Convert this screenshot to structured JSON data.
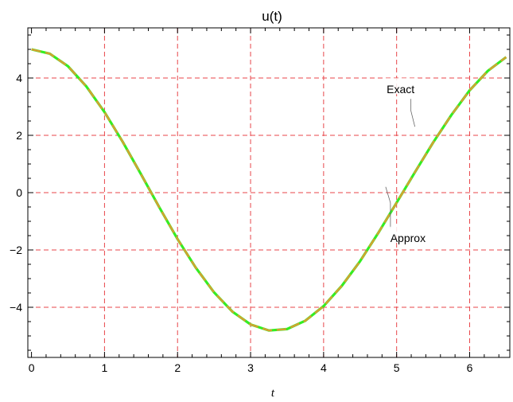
{
  "chart_data": {
    "type": "line",
    "title": "u(t)",
    "xlabel": "t",
    "ylabel": "",
    "xlim": [
      -0.05,
      6.55
    ],
    "ylim": [
      -5.75,
      5.75
    ],
    "xticks": [
      0,
      1,
      2,
      3,
      4,
      5,
      6
    ],
    "yticks": [
      -4,
      -2,
      0,
      2,
      4
    ],
    "xtick_labels": [
      "0",
      "1",
      "2",
      "3",
      "4",
      "5",
      "6"
    ],
    "ytick_labels": [
      "−4",
      "−2",
      "0",
      "2",
      "4"
    ],
    "grid": true,
    "grid_style": "dashed",
    "colors": {
      "grid": "#e8464a",
      "exact": "#33ee22",
      "approx": "#d6a030",
      "frame": "#000000"
    },
    "series": [
      {
        "name": "Exact",
        "x": [
          0,
          0.25,
          0.5,
          0.75,
          1,
          1.25,
          1.5,
          1.75,
          2,
          2.25,
          2.5,
          2.75,
          3,
          3.25,
          3.5,
          3.75,
          4,
          4.25,
          4.5,
          4.75,
          5,
          5.25,
          5.5,
          5.75,
          6,
          6.25,
          6.5
        ],
        "y": [
          5.0,
          4.85,
          4.41,
          3.71,
          2.81,
          1.77,
          0.64,
          -0.51,
          -1.62,
          -2.62,
          -3.48,
          -4.15,
          -4.6,
          -4.81,
          -4.76,
          -4.47,
          -3.96,
          -3.25,
          -2.39,
          -1.4,
          -0.35,
          0.71,
          1.75,
          2.71,
          3.57,
          4.25,
          4.73
        ]
      },
      {
        "name": "Approx",
        "x": [
          0,
          0.25,
          0.5,
          0.75,
          1,
          1.25,
          1.5,
          1.75,
          2,
          2.25,
          2.5,
          2.75,
          3,
          3.25,
          3.5,
          3.75,
          4,
          4.25,
          4.5,
          4.75,
          5,
          5.25,
          5.5,
          5.75,
          6,
          6.25,
          6.5
        ],
        "y": [
          5.0,
          4.85,
          4.41,
          3.71,
          2.81,
          1.77,
          0.64,
          -0.51,
          -1.62,
          -2.62,
          -3.48,
          -4.15,
          -4.6,
          -4.81,
          -4.76,
          -4.47,
          -3.96,
          -3.25,
          -2.39,
          -1.4,
          -0.35,
          0.71,
          1.75,
          2.71,
          3.57,
          4.25,
          4.73
        ]
      }
    ],
    "annotations": [
      {
        "text": "Exact",
        "series": "Exact",
        "point": [
          5.25,
          2.3
        ]
      },
      {
        "text": "Approx",
        "series": "Approx",
        "point": [
          4.85,
          0.2
        ]
      }
    ]
  }
}
